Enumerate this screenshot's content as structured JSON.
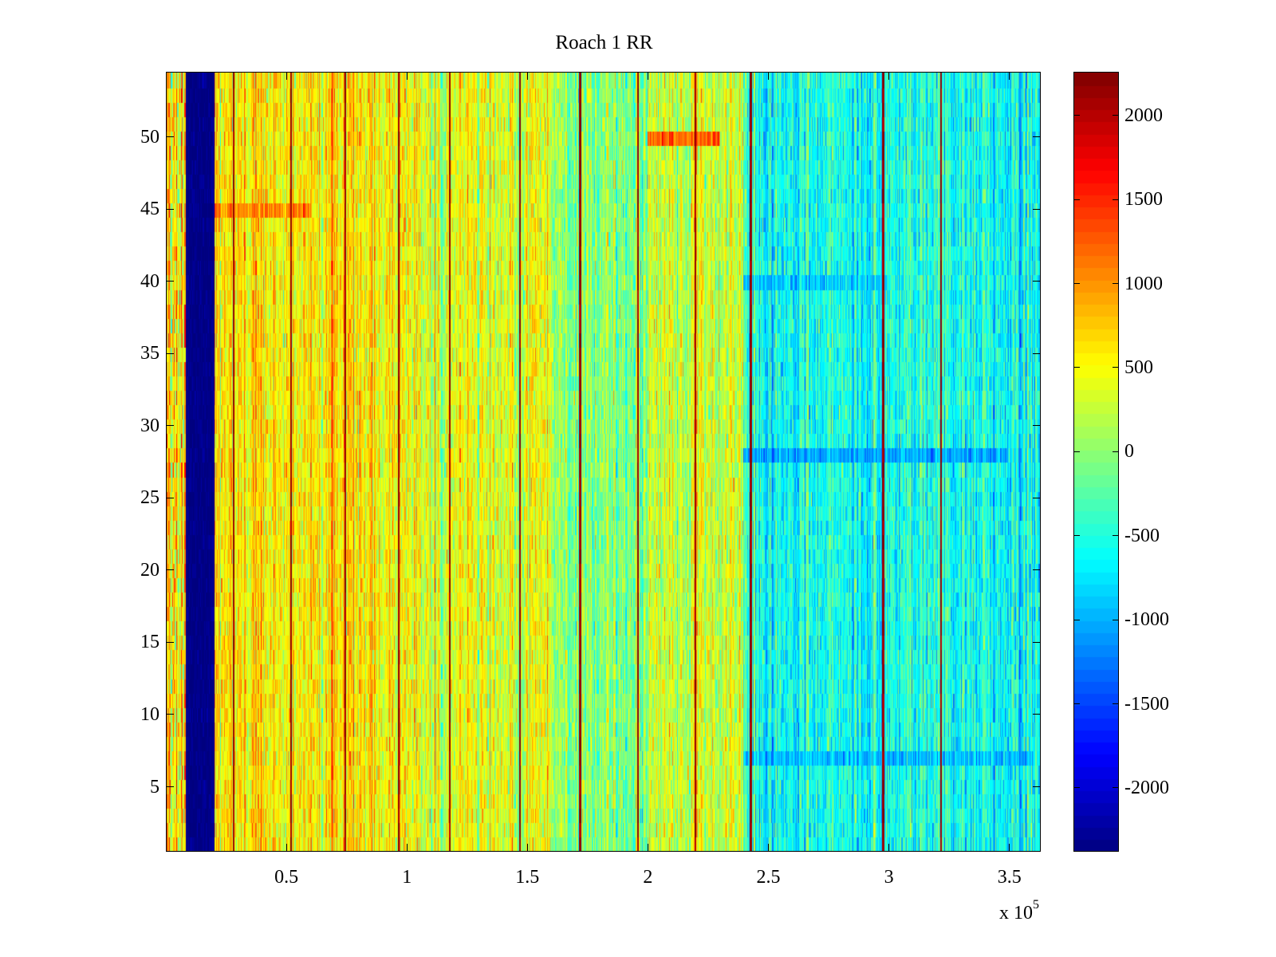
{
  "chart_data": {
    "type": "heatmap",
    "title": "Roach 1 RR",
    "xlabel": "",
    "ylabel": "",
    "x_multiplier_label": "x 10",
    "x_multiplier_exponent": "5",
    "xlim": [
      0,
      3.63
    ],
    "x_units": "1e5",
    "ylim": [
      0.5,
      54.5
    ],
    "rows": 54,
    "x_ticks": [
      0.5,
      1,
      1.5,
      2,
      2.5,
      3,
      3.5
    ],
    "x_tick_labels": [
      "0.5",
      "1",
      "1.5",
      "2",
      "2.5",
      "3",
      "3.5"
    ],
    "y_ticks": [
      5,
      10,
      15,
      20,
      25,
      30,
      35,
      40,
      45,
      50
    ],
    "y_tick_labels": [
      "5",
      "10",
      "15",
      "20",
      "25",
      "30",
      "35",
      "40",
      "45",
      "50"
    ],
    "colormap": "jet",
    "clim": [
      -2380,
      2260
    ],
    "colorbar_ticks": [
      -2000,
      -1500,
      -1000,
      -500,
      0,
      500,
      1000,
      1500,
      2000
    ],
    "colorbar_tick_labels": [
      "-2000",
      "-1500",
      "-1000",
      "-500",
      "0",
      "500",
      "1000",
      "1500",
      "2000"
    ],
    "column_bands": [
      {
        "x_range": [
          0,
          0.08
        ],
        "mean": 500,
        "spread": 700
      },
      {
        "x_range": [
          0.08,
          0.2
        ],
        "mean": -2350,
        "spread": 80
      },
      {
        "x_range": [
          0.2,
          1.0
        ],
        "mean": 600,
        "spread": 450
      },
      {
        "x_range": [
          1.0,
          1.6
        ],
        "mean": 400,
        "spread": 450
      },
      {
        "x_range": [
          1.6,
          2.0
        ],
        "mean": 0,
        "spread": 450
      },
      {
        "x_range": [
          2.0,
          2.4
        ],
        "mean": 300,
        "spread": 450
      },
      {
        "x_range": [
          2.4,
          3.63
        ],
        "mean": -550,
        "spread": 420
      }
    ],
    "vertical_peak_lines": [
      0.28,
      0.52,
      0.745,
      0.966,
      1.18,
      1.47,
      1.72,
      1.96,
      2.2,
      2.43,
      2.98,
      3.22
    ],
    "peak_line_value": 2150,
    "hotspots": [
      {
        "row": 50,
        "x_range": [
          2.0,
          2.3
        ],
        "value": 1700
      },
      {
        "row": 45,
        "x_range": [
          0.2,
          0.6
        ],
        "value": 1300
      },
      {
        "row": 28,
        "x_range": [
          2.4,
          3.5
        ],
        "value": -1300
      },
      {
        "row": 7,
        "x_range": [
          2.4,
          3.6
        ],
        "value": -1100
      },
      {
        "row": 40,
        "x_range": [
          2.4,
          3.0
        ],
        "value": -1000
      }
    ]
  }
}
